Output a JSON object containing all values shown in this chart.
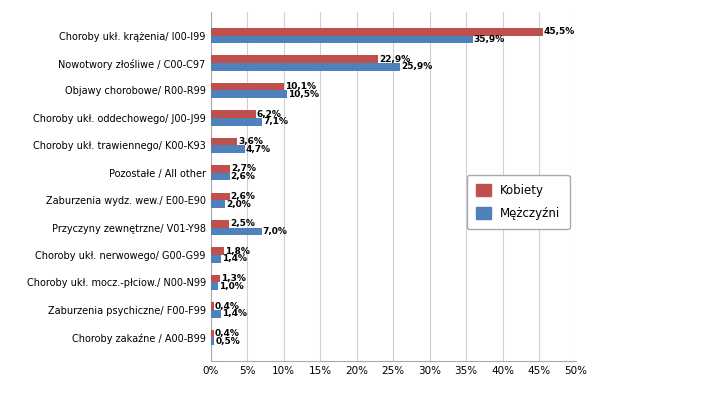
{
  "categories": [
    "Choroby ukł. krążenia/ I00-I99",
    "Nowotwory złośliwe / C00-C97",
    "Objawy chorobowe/ R00-R99",
    "Choroby ukł. oddechowego/ J00-J99",
    "Choroby ukł. trawiennego/ K00-K93",
    "Pozostałe / All other",
    "Zaburzenia wydz. wew./ E00-E90",
    "Przyczyny zewnętrzne/ V01-Y98",
    "Choroby ukł. nerwowego/ G00-G99",
    "Choroby ukł. mocz.-płciow./ N00-N99",
    "Zaburzenia psychiczne/ F00-F99",
    "Choroby zakaźne / A00-B99"
  ],
  "kobiety": [
    45.5,
    22.9,
    10.1,
    6.2,
    3.6,
    2.7,
    2.6,
    2.5,
    1.8,
    1.3,
    0.4,
    0.4
  ],
  "mezczyzni": [
    35.9,
    25.9,
    10.5,
    7.1,
    4.7,
    2.6,
    2.0,
    7.0,
    1.4,
    1.0,
    1.4,
    0.5
  ],
  "kobiety_color": "#C0504D",
  "mezczyzni_color": "#4F81BD",
  "kobiety_label": "Kobiety",
  "mezczyzni_label": "Mężczyźni",
  "xlim": [
    0,
    50
  ],
  "xticks": [
    0,
    5,
    10,
    15,
    20,
    25,
    30,
    35,
    40,
    45,
    50
  ],
  "xtick_labels": [
    "0%",
    "5%",
    "10%",
    "15%",
    "20%",
    "25%",
    "30%",
    "35%",
    "40%",
    "45%",
    "50%"
  ],
  "background_color": "#FFFFFF",
  "grid_color": "#D0D0D0",
  "bar_height": 0.28,
  "label_fontsize": 7.0,
  "value_fontsize": 6.5,
  "legend_fontsize": 8.5
}
